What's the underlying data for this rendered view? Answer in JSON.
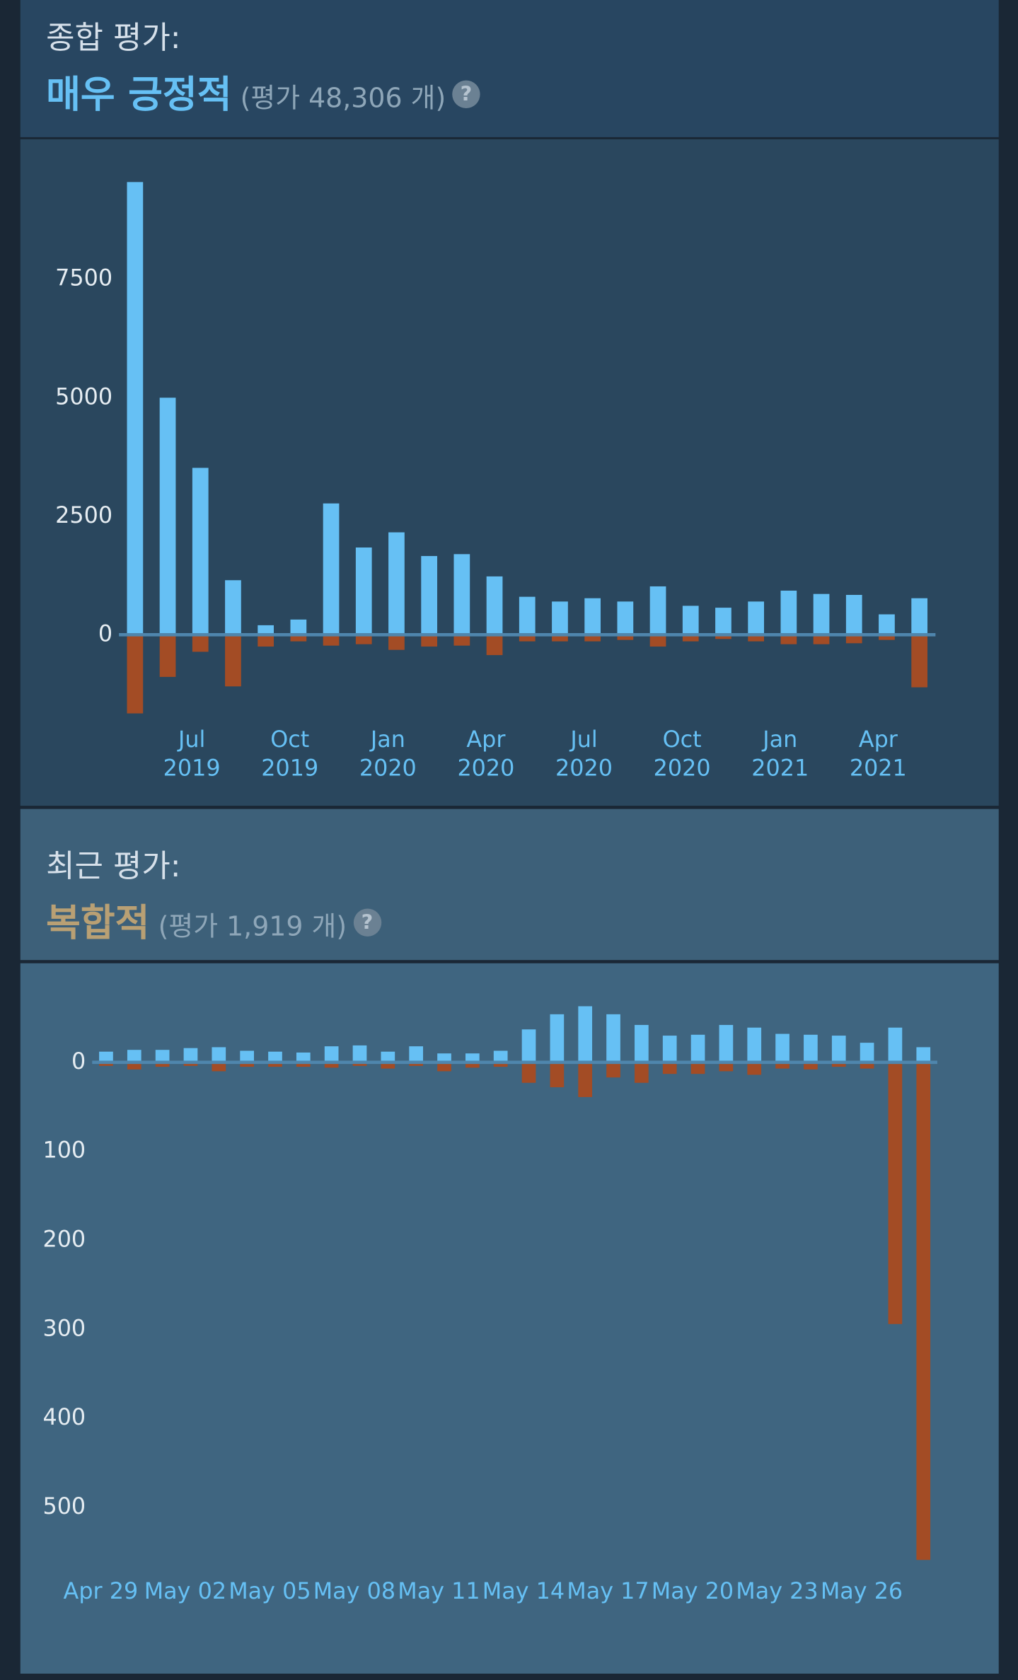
{
  "chart_data": [
    {
      "type": "bar",
      "title": "종합 평가:",
      "subtitle": "매우 긍정적",
      "annotation": "(평가 48,306 개)",
      "subtitle_color": "#66c0f4",
      "categories": [
        null,
        null,
        "Jul 2019",
        null,
        null,
        "Oct 2019",
        null,
        null,
        "Jan 2020",
        null,
        null,
        "Apr 2020",
        null,
        null,
        "Jul 2020",
        null,
        null,
        "Oct 2020",
        null,
        null,
        "Jan 2021",
        null,
        null,
        "Apr 2021",
        null
      ],
      "series": [
        {
          "color": "#66c0f4",
          "values": [
            9550,
            5000,
            3520,
            1150,
            200,
            320,
            2770,
            1840,
            2160,
            1660,
            1700,
            1230,
            800,
            700,
            770,
            700,
            1020,
            610,
            570,
            700,
            930,
            860,
            840,
            430,
            770
          ]
        },
        {
          "color": "#a34c25",
          "values": [
            -1660,
            -890,
            -360,
            -1090,
            -250,
            -140,
            -230,
            -200,
            -320,
            -250,
            -230,
            -430,
            -140,
            -140,
            -140,
            -110,
            -250,
            -140,
            -90,
            -140,
            -200,
            -200,
            -180,
            -110,
            -1110
          ]
        }
      ],
      "ylim": [
        -1800,
        10000
      ],
      "yticks": [
        0,
        2500,
        5000,
        7500
      ]
    },
    {
      "type": "bar",
      "title": "최근 평가:",
      "subtitle": "복합적",
      "annotation": "(평가 1,919 개)",
      "subtitle_color": "#b9a074",
      "categories": [
        "Apr 29",
        null,
        null,
        "May 02",
        null,
        null,
        "May 05",
        null,
        null,
        "May 08",
        null,
        null,
        "May 11",
        null,
        null,
        "May 14",
        null,
        null,
        "May 17",
        null,
        null,
        "May 20",
        null,
        null,
        "May 23",
        null,
        null,
        "May 26",
        null,
        null
      ],
      "series": [
        {
          "color": "#66c0f4",
          "values": [
            12,
            14,
            14,
            16,
            17,
            13,
            12,
            11,
            18,
            19,
            12,
            18,
            10,
            10,
            13,
            37,
            54,
            63,
            54,
            42,
            30,
            31,
            42,
            39,
            32,
            31,
            30,
            22,
            39,
            17
          ]
        },
        {
          "color": "#a34c25",
          "values": [
            -4,
            -8,
            -5,
            -4,
            -10,
            -5,
            -5,
            -5,
            -6,
            -4,
            -7,
            -4,
            -10,
            -6,
            -5,
            -23,
            -28,
            -39,
            -17,
            -23,
            -13,
            -13,
            -10,
            -14,
            -7,
            -8,
            -5,
            -7,
            -294,
            -559
          ]
        }
      ],
      "ylim": [
        -570,
        80
      ],
      "yticks": [
        0,
        {
          "value": -100,
          "label": "100"
        },
        {
          "value": -200,
          "label": "200"
        },
        {
          "value": -300,
          "label": "300"
        },
        {
          "value": -400,
          "label": "400"
        },
        {
          "value": -500,
          "label": "500"
        }
      ]
    }
  ]
}
